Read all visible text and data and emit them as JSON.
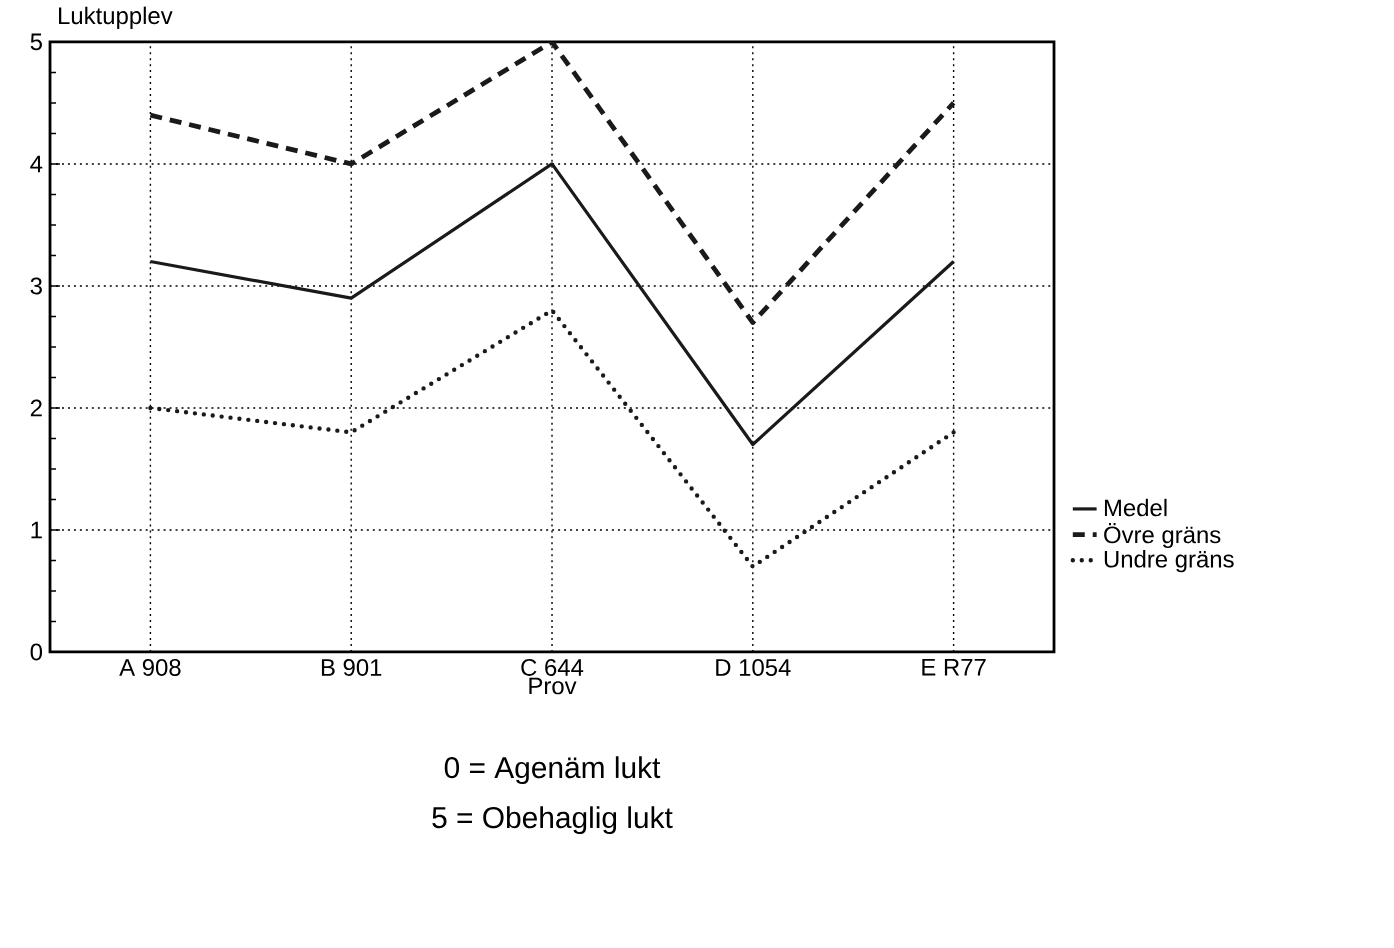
{
  "chart_data": {
    "type": "line",
    "ylabel": "Luktupplev",
    "xlabel": "Prov",
    "categories": [
      "A 908",
      "B 901",
      "C 644",
      "D 1054",
      "E R77"
    ],
    "series": [
      {
        "name": "Medel",
        "color": "#1a1a1a",
        "line_style": "solid",
        "values": [
          3.2,
          2.9,
          4.0,
          1.7,
          3.2
        ]
      },
      {
        "name": "Övre gräns",
        "color": "#1a1a1a",
        "line_style": "dashed",
        "values": [
          4.4,
          4.0,
          5.0,
          2.7,
          4.5
        ]
      },
      {
        "name": "Undre gräns",
        "color": "#1a1a1a",
        "line_style": "dotted",
        "values": [
          2.0,
          1.8,
          2.8,
          0.7,
          1.8
        ]
      }
    ],
    "ylim": [
      0,
      5
    ],
    "yticks": [
      0,
      1,
      2,
      3,
      4,
      5
    ],
    "grid": true,
    "legend": "right",
    "marker": "none",
    "annotations": [
      "0 = Agenäm lukt",
      "5 = Obehaglig lukt"
    ]
  }
}
